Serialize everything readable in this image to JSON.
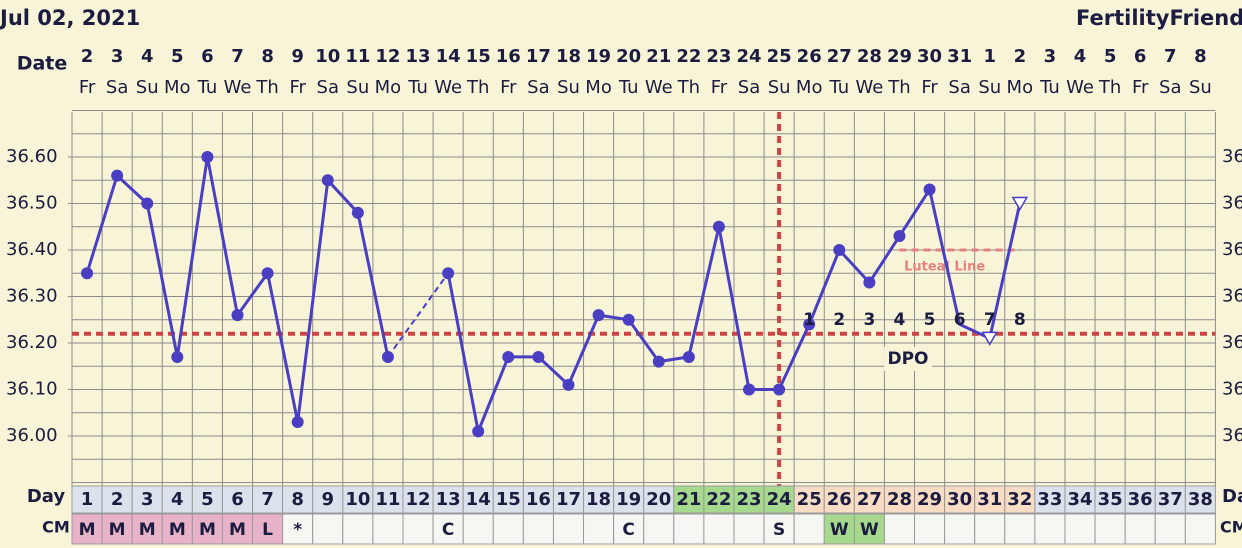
{
  "chart_data": {
    "type": "line",
    "title": "Jul 02, 2021",
    "brand": "FertilityFriend.c",
    "x_label": "Date",
    "categories": [
      2,
      3,
      4,
      5,
      6,
      7,
      8,
      9,
      10,
      11,
      12,
      13,
      14,
      15,
      16,
      17,
      18,
      19,
      20,
      21,
      22,
      23,
      24,
      25,
      26,
      27,
      28,
      29,
      30,
      31,
      1,
      2,
      3,
      4,
      5,
      6,
      7,
      8
    ],
    "weekdays": [
      "Fr",
      "Sa",
      "Su",
      "Mo",
      "Tu",
      "We",
      "Th",
      "Fr",
      "Sa",
      "Su",
      "Mo",
      "Tu",
      "We",
      "Th",
      "Fr",
      "Sa",
      "Su",
      "Mo",
      "Tu",
      "We",
      "Th",
      "Fr",
      "Sa",
      "Su",
      "Mo",
      "Tu",
      "We",
      "Th",
      "Fr",
      "Sa",
      "Su",
      "Mo",
      "Tu",
      "We",
      "Th",
      "Fr",
      "Sa",
      "Su"
    ],
    "values": [
      36.35,
      36.56,
      36.5,
      36.17,
      36.6,
      36.26,
      36.35,
      36.03,
      36.55,
      36.48,
      36.17,
      null,
      36.35,
      36.01,
      36.17,
      36.17,
      36.11,
      36.26,
      36.25,
      36.16,
      36.17,
      36.45,
      36.1,
      36.1,
      36.24,
      36.4,
      36.33,
      36.43,
      36.53,
      36.24,
      36.21,
      36.5,
      null,
      null,
      null,
      null,
      null,
      null
    ],
    "markers": [
      "dot",
      "dot",
      "dot",
      "dot",
      "dot",
      "dot",
      "dot",
      "dot",
      "dot",
      "dot",
      "dot",
      null,
      "dot",
      "dot",
      "dot",
      "dot",
      "dot",
      "dot",
      "dot",
      "dot",
      "dot",
      "dot",
      "dot",
      "dot",
      "dot",
      "dot",
      "dot",
      "dot",
      "dot",
      "none",
      "triangle",
      "triangle",
      null,
      null,
      null,
      null,
      null,
      null
    ],
    "color": "#4a3ec2",
    "ylim": [
      35.9,
      36.7
    ],
    "yticks": [
      {
        "value": 36.0,
        "label": "36.00"
      },
      {
        "value": 36.1,
        "label": "36.10"
      },
      {
        "value": 36.2,
        "label": "36.20"
      },
      {
        "value": 36.3,
        "label": "36.30"
      },
      {
        "value": 36.4,
        "label": "36.40"
      },
      {
        "value": 36.5,
        "label": "36.50"
      },
      {
        "value": 36.6,
        "label": "36.60"
      }
    ],
    "grid": true,
    "grid_step": 0.05,
    "coverline": {
      "value": 36.22,
      "color": "#cc4444"
    },
    "ovulation_day": 24,
    "luteal_line": {
      "label": "Luteal Line",
      "value": 36.4,
      "from_day": 28,
      "to_day": 32,
      "color": "#e88080"
    },
    "dpo": {
      "label": "DPO",
      "numbers": [
        1,
        2,
        3,
        4,
        5,
        6,
        7,
        8
      ],
      "start_day": 25
    },
    "day_row": {
      "label": "Day",
      "numbers": [
        1,
        2,
        3,
        4,
        5,
        6,
        7,
        8,
        9,
        10,
        11,
        12,
        13,
        14,
        15,
        16,
        17,
        18,
        19,
        20,
        21,
        22,
        23,
        24,
        25,
        26,
        27,
        28,
        29,
        30,
        31,
        32,
        33,
        34,
        35,
        36,
        37,
        38
      ],
      "color": "#dce2ec",
      "highlights": [
        {
          "from": 21,
          "to": 24,
          "color": "#a6d88e"
        },
        {
          "from": 25,
          "to": 32,
          "color": "#f8dcc4"
        }
      ]
    },
    "cm_row": {
      "label": "CM",
      "values": [
        "M",
        "M",
        "M",
        "M",
        "M",
        "M",
        "L",
        "*",
        null,
        null,
        null,
        null,
        "C",
        null,
        null,
        null,
        null,
        null,
        "C",
        null,
        null,
        null,
        null,
        "S",
        null,
        "W",
        "W",
        null,
        null,
        null,
        null,
        null,
        null,
        null,
        null,
        null,
        null,
        null
      ],
      "color": "#f6f6f2",
      "colors": {
        "M": "#e8b2c8",
        "L": "#e8b2c8",
        "W": "#a6d88e"
      }
    }
  }
}
